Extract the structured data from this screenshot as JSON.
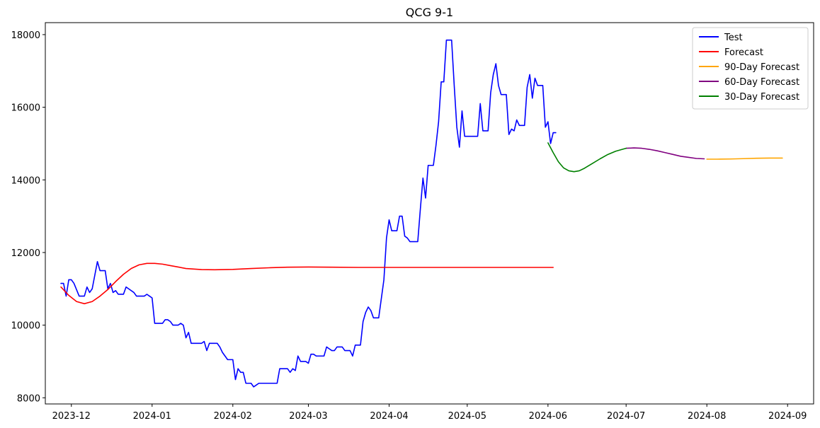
{
  "chart_data": {
    "type": "line",
    "title": "QCG 9-1",
    "xlabel": "",
    "ylabel": "",
    "x_range": [
      "2023-11-21",
      "2024-09-11"
    ],
    "ylim": [
      7830,
      18330
    ],
    "grid": false,
    "legend_position": "top-right",
    "x_ticks": [
      "2023-12-01",
      "2024-01-01",
      "2024-02-01",
      "2024-03-01",
      "2024-04-01",
      "2024-05-01",
      "2024-06-01",
      "2024-07-01",
      "2024-08-01",
      "2024-09-01"
    ],
    "x_tick_labels": [
      "2023-12",
      "2024-01",
      "2024-02",
      "2024-03",
      "2024-04",
      "2024-05",
      "2024-06",
      "2024-07",
      "2024-08",
      "2024-09"
    ],
    "y_ticks": [
      8000,
      10000,
      12000,
      14000,
      16000,
      18000
    ],
    "y_tick_labels": [
      "8000",
      "10000",
      "12000",
      "14000",
      "16000",
      "18000"
    ],
    "series": [
      {
        "name": "Test",
        "color": "#0000ff",
        "points": [
          [
            "2023-11-27",
            11150
          ],
          [
            "2023-11-28",
            11150
          ],
          [
            "2023-11-29",
            10800
          ],
          [
            "2023-11-30",
            11250
          ],
          [
            "2023-12-01",
            11250
          ],
          [
            "2023-12-02",
            11150
          ],
          [
            "2023-12-04",
            10800
          ],
          [
            "2023-12-05",
            10800
          ],
          [
            "2023-12-06",
            10800
          ],
          [
            "2023-12-07",
            11050
          ],
          [
            "2023-12-08",
            10900
          ],
          [
            "2023-12-09",
            11000
          ],
          [
            "2023-12-11",
            11750
          ],
          [
            "2023-12-12",
            11500
          ],
          [
            "2023-12-13",
            11500
          ],
          [
            "2023-12-14",
            11500
          ],
          [
            "2023-12-15",
            11000
          ],
          [
            "2023-12-16",
            11150
          ],
          [
            "2023-12-17",
            10900
          ],
          [
            "2023-12-18",
            10950
          ],
          [
            "2023-12-19",
            10850
          ],
          [
            "2023-12-20",
            10850
          ],
          [
            "2023-12-21",
            10850
          ],
          [
            "2023-12-22",
            11050
          ],
          [
            "2023-12-23",
            11000
          ],
          [
            "2023-12-25",
            10900
          ],
          [
            "2023-12-26",
            10800
          ],
          [
            "2023-12-27",
            10800
          ],
          [
            "2023-12-28",
            10800
          ],
          [
            "2023-12-29",
            10800
          ],
          [
            "2023-12-30",
            10850
          ],
          [
            "2023-12-31",
            10800
          ],
          [
            "2024-01-01",
            10750
          ],
          [
            "2024-01-02",
            10050
          ],
          [
            "2024-01-03",
            10050
          ],
          [
            "2024-01-04",
            10050
          ],
          [
            "2024-01-05",
            10050
          ],
          [
            "2024-01-06",
            10150
          ],
          [
            "2024-01-07",
            10150
          ],
          [
            "2024-01-08",
            10100
          ],
          [
            "2024-01-09",
            10000
          ],
          [
            "2024-01-10",
            10000
          ],
          [
            "2024-01-11",
            10000
          ],
          [
            "2024-01-12",
            10050
          ],
          [
            "2024-01-13",
            10000
          ],
          [
            "2024-01-14",
            9650
          ],
          [
            "2024-01-15",
            9800
          ],
          [
            "2024-01-16",
            9500
          ],
          [
            "2024-01-17",
            9500
          ],
          [
            "2024-01-19",
            9500
          ],
          [
            "2024-01-20",
            9500
          ],
          [
            "2024-01-21",
            9550
          ],
          [
            "2024-01-22",
            9300
          ],
          [
            "2024-01-23",
            9500
          ],
          [
            "2024-01-24",
            9500
          ],
          [
            "2024-01-25",
            9500
          ],
          [
            "2024-01-26",
            9500
          ],
          [
            "2024-01-27",
            9400
          ],
          [
            "2024-01-28",
            9250
          ],
          [
            "2024-01-29",
            9150
          ],
          [
            "2024-01-30",
            9050
          ],
          [
            "2024-01-31",
            9050
          ],
          [
            "2024-02-01",
            9050
          ],
          [
            "2024-02-02",
            8500
          ],
          [
            "2024-02-03",
            8800
          ],
          [
            "2024-02-04",
            8700
          ],
          [
            "2024-02-05",
            8700
          ],
          [
            "2024-02-06",
            8400
          ],
          [
            "2024-02-07",
            8400
          ],
          [
            "2024-02-08",
            8400
          ],
          [
            "2024-02-09",
            8300
          ],
          [
            "2024-02-10",
            8350
          ],
          [
            "2024-02-11",
            8400
          ],
          [
            "2024-02-12",
            8400
          ],
          [
            "2024-02-13",
            8400
          ],
          [
            "2024-02-14",
            8400
          ],
          [
            "2024-02-15",
            8400
          ],
          [
            "2024-02-16",
            8400
          ],
          [
            "2024-02-17",
            8400
          ],
          [
            "2024-02-18",
            8400
          ],
          [
            "2024-02-19",
            8800
          ],
          [
            "2024-02-20",
            8800
          ],
          [
            "2024-02-21",
            8800
          ],
          [
            "2024-02-22",
            8800
          ],
          [
            "2024-02-23",
            8700
          ],
          [
            "2024-02-24",
            8800
          ],
          [
            "2024-02-25",
            8750
          ],
          [
            "2024-02-26",
            9150
          ],
          [
            "2024-02-27",
            9000
          ],
          [
            "2024-02-28",
            9000
          ],
          [
            "2024-02-29",
            9000
          ],
          [
            "2024-03-01",
            8950
          ],
          [
            "2024-03-02",
            9200
          ],
          [
            "2024-03-03",
            9200
          ],
          [
            "2024-03-04",
            9150
          ],
          [
            "2024-03-05",
            9150
          ],
          [
            "2024-03-06",
            9150
          ],
          [
            "2024-03-07",
            9150
          ],
          [
            "2024-03-08",
            9400
          ],
          [
            "2024-03-09",
            9350
          ],
          [
            "2024-03-10",
            9300
          ],
          [
            "2024-03-11",
            9300
          ],
          [
            "2024-03-12",
            9400
          ],
          [
            "2024-03-13",
            9400
          ],
          [
            "2024-03-14",
            9400
          ],
          [
            "2024-03-15",
            9300
          ],
          [
            "2024-03-16",
            9300
          ],
          [
            "2024-03-17",
            9300
          ],
          [
            "2024-03-18",
            9150
          ],
          [
            "2024-03-19",
            9450
          ],
          [
            "2024-03-20",
            9450
          ],
          [
            "2024-03-21",
            9450
          ],
          [
            "2024-03-22",
            10100
          ],
          [
            "2024-03-23",
            10350
          ],
          [
            "2024-03-24",
            10500
          ],
          [
            "2024-03-25",
            10400
          ],
          [
            "2024-03-26",
            10200
          ],
          [
            "2024-03-27",
            10200
          ],
          [
            "2024-03-28",
            10200
          ],
          [
            "2024-03-30",
            11250
          ],
          [
            "2024-03-31",
            12400
          ],
          [
            "2024-04-01",
            12900
          ],
          [
            "2024-04-02",
            12600
          ],
          [
            "2024-04-03",
            12600
          ],
          [
            "2024-04-04",
            12600
          ],
          [
            "2024-04-05",
            13000
          ],
          [
            "2024-04-06",
            13000
          ],
          [
            "2024-04-07",
            12450
          ],
          [
            "2024-04-08",
            12400
          ],
          [
            "2024-04-09",
            12300
          ],
          [
            "2024-04-10",
            12300
          ],
          [
            "2024-04-11",
            12300
          ],
          [
            "2024-04-12",
            12300
          ],
          [
            "2024-04-13",
            13200
          ],
          [
            "2024-04-14",
            14050
          ],
          [
            "2024-04-15",
            13500
          ],
          [
            "2024-04-16",
            14400
          ],
          [
            "2024-04-17",
            14400
          ],
          [
            "2024-04-18",
            14400
          ],
          [
            "2024-04-19",
            14950
          ],
          [
            "2024-04-20",
            15600
          ],
          [
            "2024-04-21",
            16700
          ],
          [
            "2024-04-22",
            16700
          ],
          [
            "2024-04-23",
            17850
          ],
          [
            "2024-04-24",
            17850
          ],
          [
            "2024-04-25",
            17850
          ],
          [
            "2024-04-26",
            16600
          ],
          [
            "2024-04-27",
            15450
          ],
          [
            "2024-04-28",
            14900
          ],
          [
            "2024-04-29",
            15900
          ],
          [
            "2024-04-30",
            15200
          ],
          [
            "2024-05-01",
            15200
          ],
          [
            "2024-05-02",
            15200
          ],
          [
            "2024-05-03",
            15200
          ],
          [
            "2024-05-04",
            15200
          ],
          [
            "2024-05-05",
            15200
          ],
          [
            "2024-05-06",
            16100
          ],
          [
            "2024-05-07",
            15350
          ],
          [
            "2024-05-08",
            15350
          ],
          [
            "2024-05-09",
            15350
          ],
          [
            "2024-05-10",
            16400
          ],
          [
            "2024-05-11",
            16900
          ],
          [
            "2024-05-12",
            17200
          ],
          [
            "2024-05-13",
            16600
          ],
          [
            "2024-05-14",
            16350
          ],
          [
            "2024-05-15",
            16350
          ],
          [
            "2024-05-16",
            16350
          ],
          [
            "2024-05-17",
            15250
          ],
          [
            "2024-05-18",
            15400
          ],
          [
            "2024-05-19",
            15350
          ],
          [
            "2024-05-20",
            15650
          ],
          [
            "2024-05-21",
            15500
          ],
          [
            "2024-05-22",
            15500
          ],
          [
            "2024-05-23",
            15500
          ],
          [
            "2024-05-24",
            16550
          ],
          [
            "2024-05-25",
            16900
          ],
          [
            "2024-05-26",
            16250
          ],
          [
            "2024-05-27",
            16800
          ],
          [
            "2024-05-28",
            16600
          ],
          [
            "2024-05-29",
            16600
          ],
          [
            "2024-05-30",
            16600
          ],
          [
            "2024-05-31",
            15450
          ],
          [
            "2024-06-01",
            15600
          ],
          [
            "2024-06-02",
            15000
          ],
          [
            "2024-06-03",
            15300
          ],
          [
            "2024-06-04",
            15300
          ]
        ]
      },
      {
        "name": "Forecast",
        "color": "#ff0000",
        "points": [
          [
            "2023-11-27",
            11050
          ],
          [
            "2023-11-30",
            10820
          ],
          [
            "2023-12-03",
            10650
          ],
          [
            "2023-12-06",
            10590
          ],
          [
            "2023-12-09",
            10650
          ],
          [
            "2023-12-12",
            10800
          ],
          [
            "2023-12-15",
            10980
          ],
          [
            "2023-12-18",
            11200
          ],
          [
            "2023-12-21",
            11400
          ],
          [
            "2023-12-24",
            11560
          ],
          [
            "2023-12-27",
            11660
          ],
          [
            "2023-12-30",
            11700
          ],
          [
            "2024-01-02",
            11700
          ],
          [
            "2024-01-05",
            11680
          ],
          [
            "2024-01-08",
            11640
          ],
          [
            "2024-01-11",
            11600
          ],
          [
            "2024-01-14",
            11560
          ],
          [
            "2024-01-17",
            11545
          ],
          [
            "2024-01-20",
            11530
          ],
          [
            "2024-01-25",
            11525
          ],
          [
            "2024-02-01",
            11535
          ],
          [
            "2024-02-08",
            11560
          ],
          [
            "2024-02-15",
            11580
          ],
          [
            "2024-02-22",
            11595
          ],
          [
            "2024-03-01",
            11600
          ],
          [
            "2024-03-10",
            11595
          ],
          [
            "2024-03-20",
            11590
          ],
          [
            "2024-04-01",
            11590
          ],
          [
            "2024-05-01",
            11590
          ],
          [
            "2024-06-03",
            11590
          ]
        ]
      },
      {
        "name": "90-Day Forecast",
        "color": "#ffa500",
        "points": [
          [
            "2024-08-01",
            14570
          ],
          [
            "2024-08-05",
            14570
          ],
          [
            "2024-08-10",
            14575
          ],
          [
            "2024-08-15",
            14585
          ],
          [
            "2024-08-20",
            14595
          ],
          [
            "2024-08-25",
            14600
          ],
          [
            "2024-08-30",
            14600
          ]
        ]
      },
      {
        "name": "60-Day Forecast",
        "color": "#800080",
        "points": [
          [
            "2024-07-01",
            14870
          ],
          [
            "2024-07-04",
            14880
          ],
          [
            "2024-07-07",
            14870
          ],
          [
            "2024-07-10",
            14840
          ],
          [
            "2024-07-13",
            14800
          ],
          [
            "2024-07-16",
            14750
          ],
          [
            "2024-07-19",
            14700
          ],
          [
            "2024-07-22",
            14650
          ],
          [
            "2024-07-25",
            14620
          ],
          [
            "2024-07-28",
            14590
          ],
          [
            "2024-07-31",
            14580
          ]
        ]
      },
      {
        "name": "30-Day Forecast",
        "color": "#008000",
        "points": [
          [
            "2024-06-01",
            15020
          ],
          [
            "2024-06-03",
            14750
          ],
          [
            "2024-06-05",
            14500
          ],
          [
            "2024-06-07",
            14330
          ],
          [
            "2024-06-09",
            14250
          ],
          [
            "2024-06-11",
            14225
          ],
          [
            "2024-06-13",
            14250
          ],
          [
            "2024-06-15",
            14320
          ],
          [
            "2024-06-18",
            14450
          ],
          [
            "2024-06-21",
            14580
          ],
          [
            "2024-06-24",
            14700
          ],
          [
            "2024-06-27",
            14790
          ],
          [
            "2024-06-30",
            14850
          ],
          [
            "2024-07-01",
            14870
          ]
        ]
      }
    ]
  }
}
